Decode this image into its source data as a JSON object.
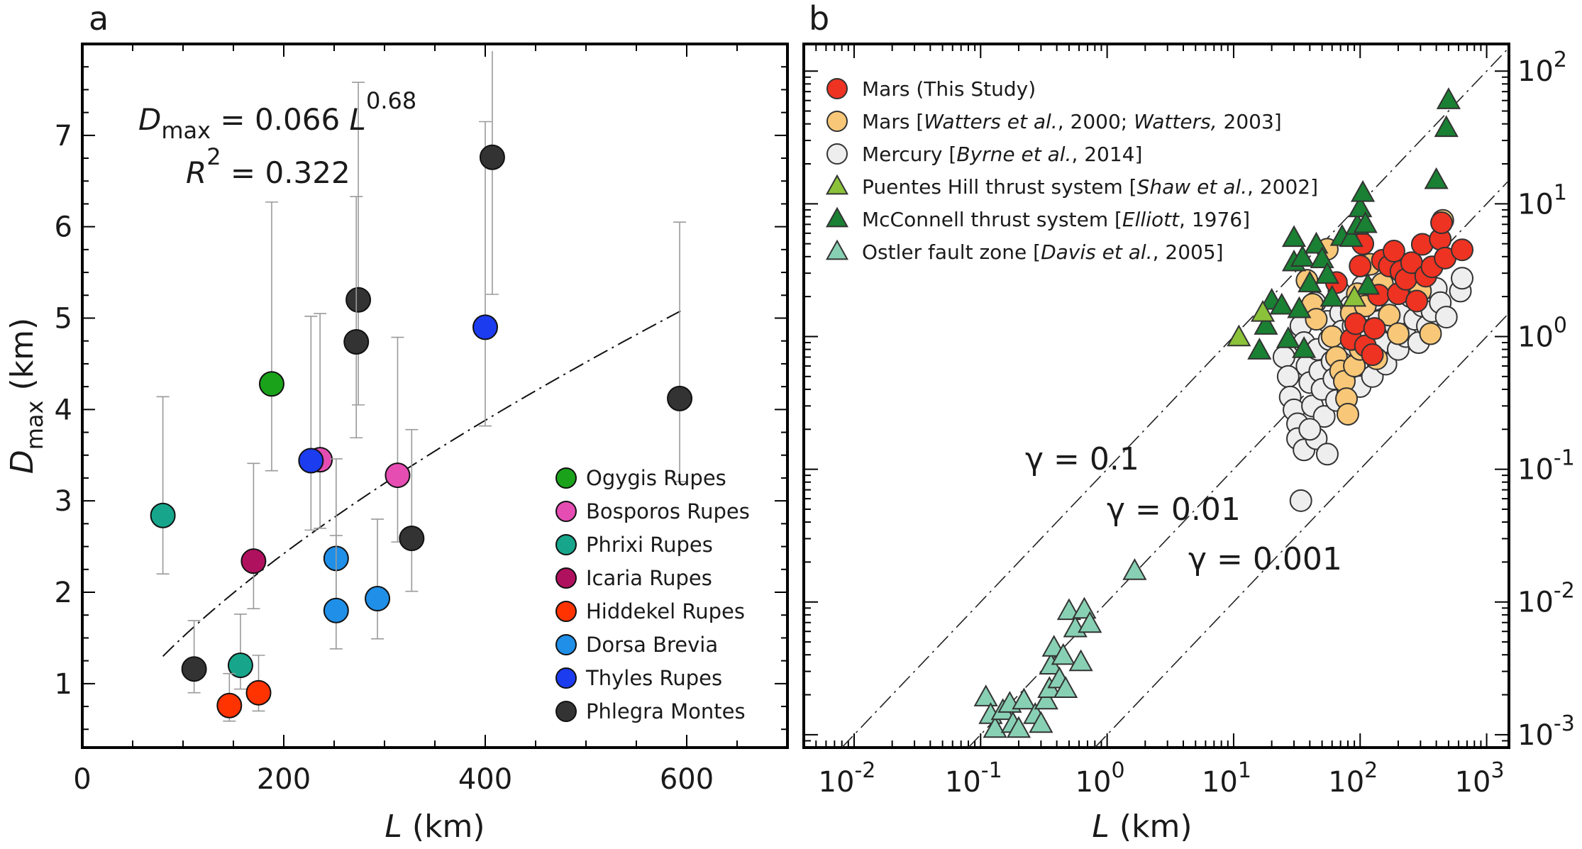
{
  "panel_a_label": "a",
  "panel_b_label": "b",
  "equation_lhs": "D",
  "equation_lhs_sub": "max",
  "equation_rhs": " = 0.066 ",
  "equation_var": "L",
  "equation_exp": "0.68",
  "r2_var": "R",
  "r2_exp": "2",
  "r2_rhs": " = 0.322",
  "gamma_labels": [
    "γ = 0.1",
    "γ = 0.01",
    "γ = 0.001"
  ],
  "colors": {
    "ogygis": "#1aa31a",
    "bosporos": "#e54db3",
    "phrixi": "#17a68c",
    "icaria": "#b0115e",
    "hiddekel": "#ff3300",
    "dorsa": "#1f8fe8",
    "thyles": "#1c3cf0",
    "phlegra": "#333333",
    "mars_this": "#ee3322",
    "mars_watters": "#f8c878",
    "mercury": "#eeeeee",
    "puentes": "#8bc23a",
    "mcconnell": "#1a8033",
    "ostler": "#88d0b4"
  },
  "chart_data": [
    {
      "type": "scatter",
      "panel": "a",
      "xlabel": "L (km)",
      "ylabel": "Dmax (km)",
      "xlim": [
        0,
        700
      ],
      "ylim": [
        0.3,
        8.0
      ],
      "xticks": [
        0,
        200,
        400,
        600
      ],
      "yticks": [
        1,
        2,
        3,
        4,
        5,
        6,
        7
      ],
      "grid": false,
      "legend_position": "bottom-right",
      "fit": {
        "a": 0.066,
        "b": 0.68,
        "x_range": [
          80,
          595
        ],
        "r2": 0.322
      },
      "series": [
        {
          "name": "Ogygis Rupes",
          "color_key": "ogygis",
          "points": [
            {
              "x": 188,
              "y": 4.28,
              "lo": 3.33,
              "hi": 6.27
            }
          ]
        },
        {
          "name": "Bosporos Rupes",
          "color_key": "bosporos",
          "points": [
            {
              "x": 236,
              "y": 3.45,
              "lo": 2.7,
              "hi": 5.05
            },
            {
              "x": 313,
              "y": 3.28,
              "lo": 2.55,
              "hi": 4.79
            }
          ]
        },
        {
          "name": "Phrixi Rupes",
          "color_key": "phrixi",
          "points": [
            {
              "x": 80,
              "y": 2.84,
              "lo": 2.2,
              "hi": 4.14
            },
            {
              "x": 157,
              "y": 1.2,
              "lo": 0.94,
              "hi": 1.76
            }
          ]
        },
        {
          "name": "Icaria Rupes",
          "color_key": "icaria",
          "points": [
            {
              "x": 170,
              "y": 2.34,
              "lo": 1.82,
              "hi": 3.41
            }
          ]
        },
        {
          "name": "Hiddekel Rupes",
          "color_key": "hiddekel",
          "points": [
            {
              "x": 146,
              "y": 0.76,
              "lo": 0.59,
              "hi": 1.11
            },
            {
              "x": 175,
              "y": 0.9,
              "lo": 0.7,
              "hi": 1.31
            }
          ]
        },
        {
          "name": "Dorsa Brevia",
          "color_key": "dorsa",
          "points": [
            {
              "x": 252,
              "y": 2.37,
              "lo": 1.85,
              "hi": 3.46
            },
            {
              "x": 252,
              "y": 1.8,
              "lo": 1.38,
              "hi": 2.62
            },
            {
              "x": 293,
              "y": 1.93,
              "lo": 1.49,
              "hi": 2.8
            }
          ]
        },
        {
          "name": "Thyles Rupes",
          "color_key": "thyles",
          "points": [
            {
              "x": 227,
              "y": 3.44,
              "lo": 2.68,
              "hi": 5.02
            },
            {
              "x": 400,
              "y": 4.9,
              "lo": 3.82,
              "hi": 7.15
            }
          ]
        },
        {
          "name": "Phlegra Montes",
          "color_key": "phlegra",
          "points": [
            {
              "x": 111,
              "y": 1.16,
              "lo": 0.9,
              "hi": 1.69
            },
            {
              "x": 274,
              "y": 5.2,
              "lo": 4.05,
              "hi": 7.58
            },
            {
              "x": 272,
              "y": 4.74,
              "lo": 3.69,
              "hi": 6.33
            },
            {
              "x": 327,
              "y": 2.59,
              "lo": 2.01,
              "hi": 3.78
            },
            {
              "x": 407,
              "y": 6.76,
              "lo": 5.26,
              "hi": 9.86
            },
            {
              "x": 593,
              "y": 4.12,
              "lo": 3.21,
              "hi": 6.05
            }
          ]
        }
      ]
    },
    {
      "type": "scatter",
      "panel": "b",
      "xlabel": "L (km)",
      "xscale": "log",
      "yscale": "log",
      "xlim": [
        0.004,
        1500
      ],
      "ylim": [
        0.0008,
        160
      ],
      "xticks": [
        0.01,
        0.1,
        1,
        10,
        100,
        1000
      ],
      "xtick_labels": [
        {
          "base": "10",
          "exp": "-2"
        },
        {
          "base": "10",
          "exp": "-1"
        },
        {
          "base": "10",
          "exp": "0"
        },
        {
          "base": "10",
          "exp": "1"
        },
        {
          "base": "10",
          "exp": "2"
        },
        {
          "base": "10",
          "exp": "3"
        }
      ],
      "yticks": [
        0.001,
        0.01,
        0.1,
        1,
        10,
        100
      ],
      "ytick_labels": [
        {
          "base": "10",
          "exp": "-3"
        },
        {
          "base": "10",
          "exp": "-2"
        },
        {
          "base": "10",
          "exp": "-1"
        },
        {
          "base": "10",
          "exp": "0"
        },
        {
          "base": "10",
          "exp": "1"
        },
        {
          "base": "10",
          "exp": "2"
        }
      ],
      "grid": false,
      "legend_position": "top-left",
      "gamma_lines": [
        0.1,
        0.01,
        0.001
      ],
      "series": [
        {
          "name_parts": [
            {
              "t": "Mars (This Study)",
              "i": false
            }
          ],
          "marker": "circle",
          "color_key": "mars_this",
          "points": [
            [
              65,
              2.55
            ],
            [
              85,
              0.95
            ],
            [
              92,
              1.25
            ],
            [
              100,
              3.4
            ],
            [
              105,
              5.0
            ],
            [
              110,
              0.85
            ],
            [
              125,
              0.73
            ],
            [
              130,
              1.15
            ],
            [
              140,
              2.05
            ],
            [
              150,
              3.75
            ],
            [
              170,
              3.4
            ],
            [
              185,
              4.4
            ],
            [
              200,
              2.1
            ],
            [
              210,
              3.1
            ],
            [
              230,
              2.7
            ],
            [
              255,
              3.6
            ],
            [
              280,
              1.85
            ],
            [
              310,
              4.95
            ],
            [
              330,
              2.85
            ],
            [
              370,
              3.35
            ],
            [
              430,
              5.4
            ],
            [
              440,
              7.2
            ],
            [
              470,
              3.9
            ],
            [
              640,
              4.5
            ]
          ]
        },
        {
          "name_parts": [
            {
              "t": "Mars [",
              "i": false
            },
            {
              "t": "Watters et al.",
              "i": true
            },
            {
              "t": ", 2000; ",
              "i": false
            },
            {
              "t": "Watters,",
              "i": true
            },
            {
              "t": " 2003]",
              "i": false
            }
          ],
          "marker": "circle",
          "color_key": "mars_watters",
          "points": [
            [
              38,
              2.65
            ],
            [
              42,
              1.75
            ],
            [
              45,
              1.35
            ],
            [
              55,
              4.55
            ],
            [
              60,
              1.0
            ],
            [
              65,
              0.7
            ],
            [
              70,
              0.55
            ],
            [
              75,
              0.46
            ],
            [
              78,
              0.34
            ],
            [
              80,
              0.26
            ],
            [
              85,
              1.5
            ],
            [
              90,
              0.6
            ],
            [
              95,
              2.1
            ],
            [
              100,
              0.8
            ],
            [
              110,
              1.7
            ],
            [
              120,
              3.5
            ],
            [
              135,
              0.68
            ],
            [
              150,
              2.5
            ],
            [
              170,
              1.45
            ],
            [
              200,
              1.05
            ],
            [
              260,
              3.3
            ],
            [
              300,
              2.2
            ],
            [
              360,
              1.05
            ],
            [
              450,
              7.5
            ]
          ]
        },
        {
          "name_parts": [
            {
              "t": "Mercury [",
              "i": false
            },
            {
              "t": "Byrne et al.",
              "i": true
            },
            {
              "t": ", 2014]",
              "i": false
            }
          ],
          "marker": "circle",
          "color_key": "mercury",
          "points": [
            [
              25,
              0.7
            ],
            [
              27,
              0.5
            ],
            [
              28,
              0.35
            ],
            [
              30,
              0.28
            ],
            [
              32,
              0.22
            ],
            [
              34,
              1.2
            ],
            [
              36,
              0.9
            ],
            [
              38,
              0.6
            ],
            [
              40,
              0.45
            ],
            [
              42,
              0.3
            ],
            [
              44,
              1.8
            ],
            [
              46,
              0.8
            ],
            [
              48,
              0.55
            ],
            [
              50,
              0.4
            ],
            [
              52,
              0.25
            ],
            [
              55,
              1.3
            ],
            [
              57,
              0.95
            ],
            [
              60,
              0.65
            ],
            [
              62,
              0.48
            ],
            [
              65,
              0.33
            ],
            [
              68,
              2.2
            ],
            [
              70,
              1.5
            ],
            [
              72,
              1.1
            ],
            [
              75,
              0.78
            ],
            [
              78,
              0.55
            ],
            [
              80,
              0.38
            ],
            [
              85,
              1.7
            ],
            [
              88,
              1.2
            ],
            [
              90,
              0.85
            ],
            [
              95,
              0.6
            ],
            [
              100,
              0.42
            ],
            [
              105,
              2.4
            ],
            [
              110,
              1.6
            ],
            [
              115,
              1.1
            ],
            [
              120,
              0.75
            ],
            [
              125,
              0.5
            ],
            [
              130,
              1.9
            ],
            [
              140,
              1.3
            ],
            [
              150,
              0.9
            ],
            [
              160,
              0.62
            ],
            [
              170,
              2.6
            ],
            [
              180,
              1.75
            ],
            [
              190,
              1.2
            ],
            [
              200,
              0.8
            ],
            [
              215,
              1.5
            ],
            [
              230,
              1.0
            ],
            [
              250,
              2.0
            ],
            [
              270,
              1.35
            ],
            [
              290,
              0.9
            ],
            [
              310,
              1.7
            ],
            [
              340,
              1.2
            ],
            [
              370,
              1.55
            ],
            [
              400,
              2.3
            ],
            [
              430,
              1.8
            ],
            [
              480,
              1.4
            ],
            [
              620,
              2.2
            ],
            [
              640,
              2.75
            ],
            [
              34,
              0.058
            ],
            [
              32,
              0.17
            ],
            [
              36,
              0.14
            ],
            [
              45,
              0.17
            ],
            [
              55,
              0.13
            ],
            [
              40,
              0.2
            ]
          ]
        },
        {
          "name_parts": [
            {
              "t": "Puentes Hill thrust system [",
              "i": false
            },
            {
              "t": "Shaw et al.",
              "i": true
            },
            {
              "t": ", 2002]",
              "i": false
            }
          ],
          "marker": "triangle",
          "color_key": "puentes",
          "points": [
            [
              11,
              0.98
            ],
            [
              17,
              1.5
            ],
            [
              90,
              1.95
            ]
          ]
        },
        {
          "name_parts": [
            {
              "t": "McConnell thrust system [",
              "i": false
            },
            {
              "t": "Elliott",
              "i": true
            },
            {
              "t": ", 1976]",
              "i": false
            }
          ],
          "marker": "triangle",
          "color_key": "mcconnell",
          "points": [
            [
              16,
              0.78
            ],
            [
              18,
              1.2
            ],
            [
              20,
              1.85
            ],
            [
              24,
              1.7
            ],
            [
              27,
              0.95
            ],
            [
              30,
              3.6
            ],
            [
              30,
              5.5
            ],
            [
              33,
              1.6
            ],
            [
              35,
              3.9
            ],
            [
              36,
              0.8
            ],
            [
              40,
              2.5
            ],
            [
              45,
              4.9
            ],
            [
              50,
              3.8
            ],
            [
              55,
              2.9
            ],
            [
              60,
              1.95
            ],
            [
              72,
              5.6
            ],
            [
              85,
              5.5
            ],
            [
              95,
              6.8
            ],
            [
              100,
              9.2
            ],
            [
              105,
              12.0
            ],
            [
              110,
              7.0
            ],
            [
              115,
              2.4
            ],
            [
              400,
              15.0
            ],
            [
              480,
              37.0
            ],
            [
              500,
              60.0
            ]
          ]
        },
        {
          "name_parts": [
            {
              "t": "Ostler fault zone [",
              "i": false
            },
            {
              "t": "Davis et al.",
              "i": true
            },
            {
              "t": ", 2005]",
              "i": false
            }
          ],
          "marker": "triangle",
          "color_key": "ostler",
          "points": [
            [
              0.11,
              0.0019
            ],
            [
              0.12,
              0.0014
            ],
            [
              0.13,
              0.0011
            ],
            [
              0.15,
              0.0015
            ],
            [
              0.17,
              0.0017
            ],
            [
              0.18,
              0.0012
            ],
            [
              0.2,
              0.0011
            ],
            [
              0.22,
              0.0018
            ],
            [
              0.27,
              0.0014
            ],
            [
              0.3,
              0.0012
            ],
            [
              0.33,
              0.0018
            ],
            [
              0.35,
              0.0022
            ],
            [
              0.36,
              0.0033
            ],
            [
              0.38,
              0.0045
            ],
            [
              0.42,
              0.0026
            ],
            [
              0.45,
              0.0039
            ],
            [
              0.47,
              0.0022
            ],
            [
              0.5,
              0.0085
            ],
            [
              0.56,
              0.0063
            ],
            [
              0.62,
              0.0035
            ],
            [
              0.66,
              0.0087
            ],
            [
              0.73,
              0.0068
            ],
            [
              1.65,
              0.017
            ]
          ]
        }
      ]
    }
  ]
}
